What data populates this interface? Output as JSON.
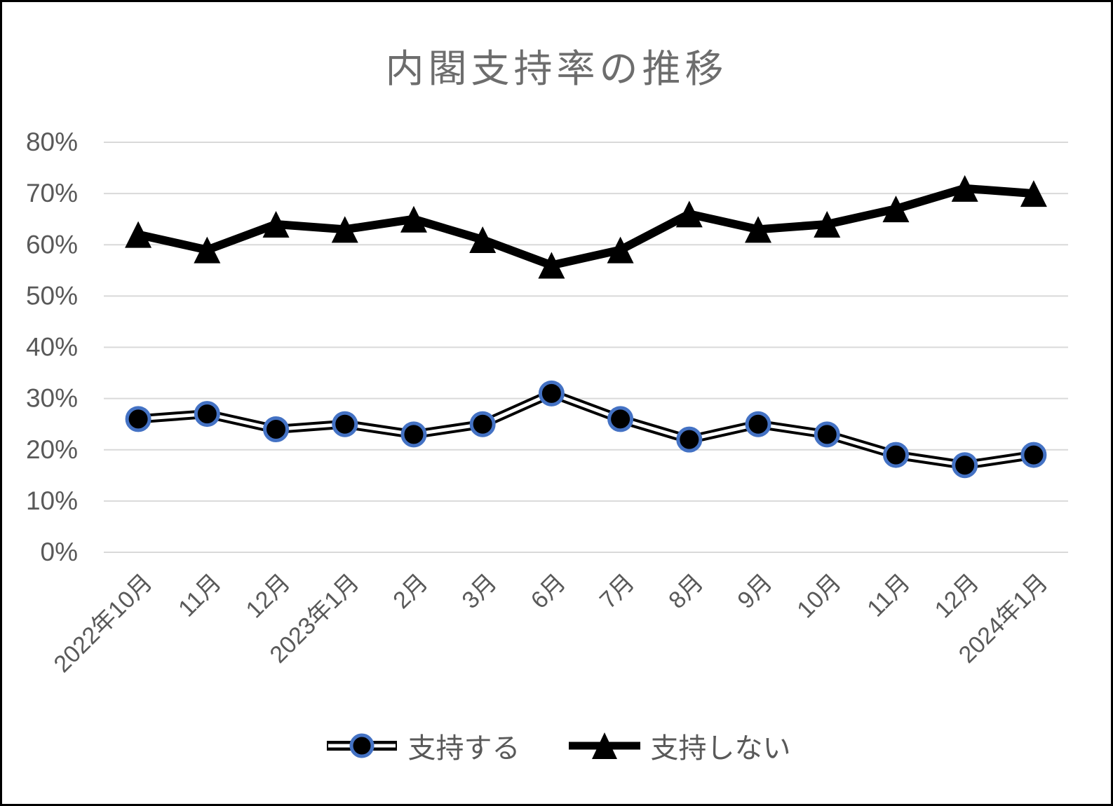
{
  "chart_data": {
    "type": "line",
    "title": "内閣支持率の推移",
    "categories": [
      "2022年10月",
      "11月",
      "12月",
      "2023年1月",
      "2月",
      "3月",
      "6月",
      "7月",
      "8月",
      "9月",
      "10月",
      "11月",
      "12月",
      "2024年1月"
    ],
    "series": [
      {
        "name": "支持する",
        "marker": "circle",
        "line_style": "black-outline-double-line",
        "values": [
          26,
          27,
          24,
          25,
          23,
          25,
          31,
          26,
          22,
          25,
          23,
          19,
          17,
          19
        ]
      },
      {
        "name": "支持しない",
        "marker": "triangle",
        "line_style": "solid-thick",
        "values": [
          62,
          59,
          64,
          63,
          65,
          61,
          56,
          59,
          66,
          63,
          64,
          67,
          71,
          70
        ]
      }
    ],
    "xlabel": "",
    "ylabel": "",
    "ylim": [
      0,
      80
    ],
    "ytick_step": 10,
    "ytick_labels": [
      "0%",
      "10%",
      "20%",
      "30%",
      "40%",
      "50%",
      "60%",
      "70%",
      "80%"
    ],
    "grid": "horizontal",
    "x_tick_rotation_deg": 45,
    "legend_position": "bottom",
    "colors": {
      "series_line": "#000000",
      "marker_fill": "#000000",
      "circle_marker_ring": "#4472C4",
      "gridline": "#D9D9D9",
      "axis_text": "#595959",
      "title_text": "#6d6d6d",
      "background": "#FFFFFF",
      "frame_border": "#000000"
    }
  }
}
